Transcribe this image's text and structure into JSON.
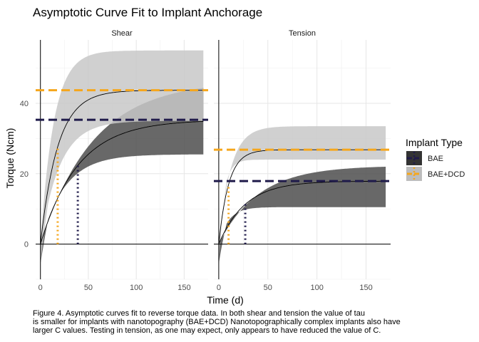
{
  "chart_data": {
    "type": "line",
    "title": "Asymptotic Curve Fit to Implant Anchorage",
    "xlabel": "Time (d)",
    "ylabel": "Torque (Ncm)",
    "xlim": [
      -5,
      175
    ],
    "ylim": [
      -10,
      58
    ],
    "x_ticks": [
      0,
      50,
      100,
      150
    ],
    "y_ticks": [
      0,
      20,
      40
    ],
    "grid": true,
    "legend": {
      "title": "Implant Type",
      "position": "right",
      "entries": [
        {
          "label": "BAE",
          "line_color": "#1f1a4a",
          "fill_color": "#333333"
        },
        {
          "label": "BAE+DCD",
          "line_color": "#f5a61c",
          "fill_color": "#bdbdbd"
        }
      ]
    },
    "panels": [
      {
        "name": "Shear",
        "x_max": 170,
        "series": [
          {
            "name": "BAE",
            "C": 35.3,
            "tau": 39,
            "band_upper": {
              "C": 46.5,
              "tau": 55
            },
            "band_lower": {
              "C": 25.5,
              "tau": 25
            },
            "ci_color": "#4d4d4d"
          },
          {
            "name": "BAE+DCD",
            "C": 43.7,
            "tau": 18,
            "band_upper": {
              "C": 55,
              "tau": 14
            },
            "band_lower": {
              "C": 35,
              "tau": 20
            },
            "ci_color": "#c8c8c8"
          }
        ]
      },
      {
        "name": "Tension",
        "x_max": 170,
        "series": [
          {
            "name": "BAE",
            "C": 17.9,
            "tau": 27,
            "band_upper": {
              "C": 22.3,
              "tau": 40
            },
            "band_lower": {
              "C": 10.5,
              "tau": 10
            },
            "ci_color": "#4d4d4d"
          },
          {
            "name": "BAE+DCD",
            "C": 26.8,
            "tau": 10,
            "band_upper": {
              "C": 33.5,
              "tau": 12
            },
            "band_lower": {
              "C": 24,
              "tau": 6
            },
            "ci_color": "#c8c8c8"
          }
        ]
      }
    ]
  },
  "caption": {
    "line1": "Figure 4. Asymptotic curves fit to reverse torque data. In both shear and tension the value of tau",
    "line2": "is smaller for implants with nanotopography (BAE+DCD) Nanotopographically complex implants also have",
    "line3": "larger C values. Testing in tension, as one may expect, only appears to have reduced the value of C."
  }
}
